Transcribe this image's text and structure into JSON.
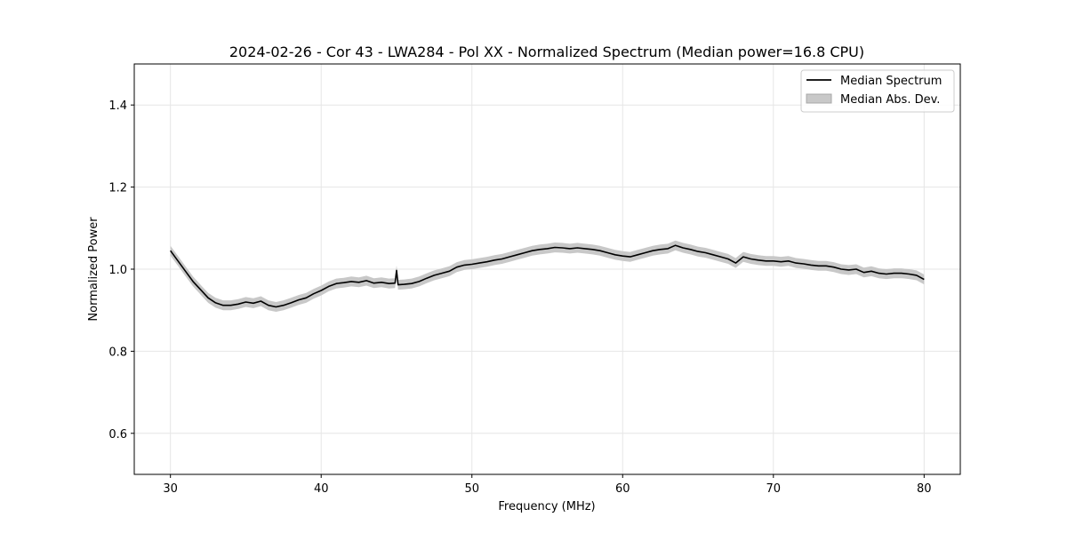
{
  "chart_data": {
    "type": "line",
    "title": "2024-02-26 - Cor 43 - LWA284 - Pol XX - Normalized Spectrum (Median power=16.8 CPU)",
    "xlabel": "Frequency (MHz)",
    "ylabel": "Normalized Power",
    "xlim": [
      27.6,
      82.4
    ],
    "ylim": [
      0.5,
      1.5
    ],
    "xticks": [
      30,
      40,
      50,
      60,
      70,
      80
    ],
    "yticks": [
      0.6,
      0.8,
      1.0,
      1.2,
      1.4
    ],
    "xtick_labels": [
      "30",
      "40",
      "50",
      "60",
      "70",
      "80"
    ],
    "ytick_labels": [
      "0.6",
      "0.8",
      "1.0",
      "1.2",
      "1.4"
    ],
    "grid": true,
    "legend_position": "top-right",
    "series": [
      {
        "name": "Median Spectrum",
        "kind": "line",
        "color": "#000000",
        "x": [
          30.0,
          30.5,
          31.0,
          31.5,
          32.0,
          32.5,
          33.0,
          33.5,
          34.0,
          34.5,
          35.0,
          35.5,
          36.0,
          36.5,
          37.0,
          37.5,
          38.0,
          38.5,
          39.0,
          39.5,
          40.0,
          40.5,
          41.0,
          41.5,
          42.0,
          42.5,
          43.0,
          43.5,
          44.0,
          44.5,
          44.9,
          45.0,
          45.1,
          45.5,
          46.0,
          46.5,
          47.0,
          47.5,
          48.0,
          48.5,
          49.0,
          49.5,
          50.0,
          50.5,
          51.0,
          51.5,
          52.0,
          52.5,
          53.0,
          53.5,
          54.0,
          54.5,
          55.0,
          55.5,
          56.0,
          56.5,
          57.0,
          57.5,
          58.0,
          58.5,
          59.0,
          59.5,
          60.0,
          60.5,
          61.0,
          61.5,
          62.0,
          62.5,
          63.0,
          63.5,
          64.0,
          64.5,
          65.0,
          65.5,
          66.0,
          66.5,
          67.0,
          67.5,
          68.0,
          68.5,
          69.0,
          69.5,
          70.0,
          70.5,
          71.0,
          71.5,
          72.0,
          72.5,
          73.0,
          73.5,
          74.0,
          74.5,
          75.0,
          75.5,
          76.0,
          76.5,
          77.0,
          77.5,
          78.0,
          78.5,
          79.0,
          79.5,
          80.0
        ],
        "values": [
          1.045,
          1.02,
          0.995,
          0.97,
          0.95,
          0.93,
          0.918,
          0.912,
          0.912,
          0.915,
          0.92,
          0.917,
          0.922,
          0.912,
          0.908,
          0.912,
          0.918,
          0.925,
          0.93,
          0.94,
          0.948,
          0.958,
          0.965,
          0.967,
          0.97,
          0.968,
          0.972,
          0.966,
          0.968,
          0.965,
          0.966,
          0.997,
          0.962,
          0.963,
          0.965,
          0.97,
          0.978,
          0.985,
          0.99,
          0.995,
          1.005,
          1.01,
          1.012,
          1.015,
          1.018,
          1.022,
          1.025,
          1.03,
          1.035,
          1.04,
          1.045,
          1.048,
          1.05,
          1.053,
          1.052,
          1.05,
          1.052,
          1.05,
          1.048,
          1.045,
          1.04,
          1.035,
          1.032,
          1.03,
          1.035,
          1.04,
          1.045,
          1.048,
          1.05,
          1.058,
          1.052,
          1.048,
          1.043,
          1.04,
          1.035,
          1.03,
          1.025,
          1.015,
          1.03,
          1.025,
          1.022,
          1.02,
          1.02,
          1.018,
          1.02,
          1.015,
          1.013,
          1.01,
          1.008,
          1.008,
          1.005,
          1.0,
          0.998,
          1.0,
          0.992,
          0.995,
          0.99,
          0.988,
          0.99,
          0.99,
          0.988,
          0.985,
          0.975
        ]
      },
      {
        "name": "Median Abs. Dev.",
        "kind": "band",
        "color": "#c8c8c8",
        "half_width": 0.012
      }
    ]
  }
}
